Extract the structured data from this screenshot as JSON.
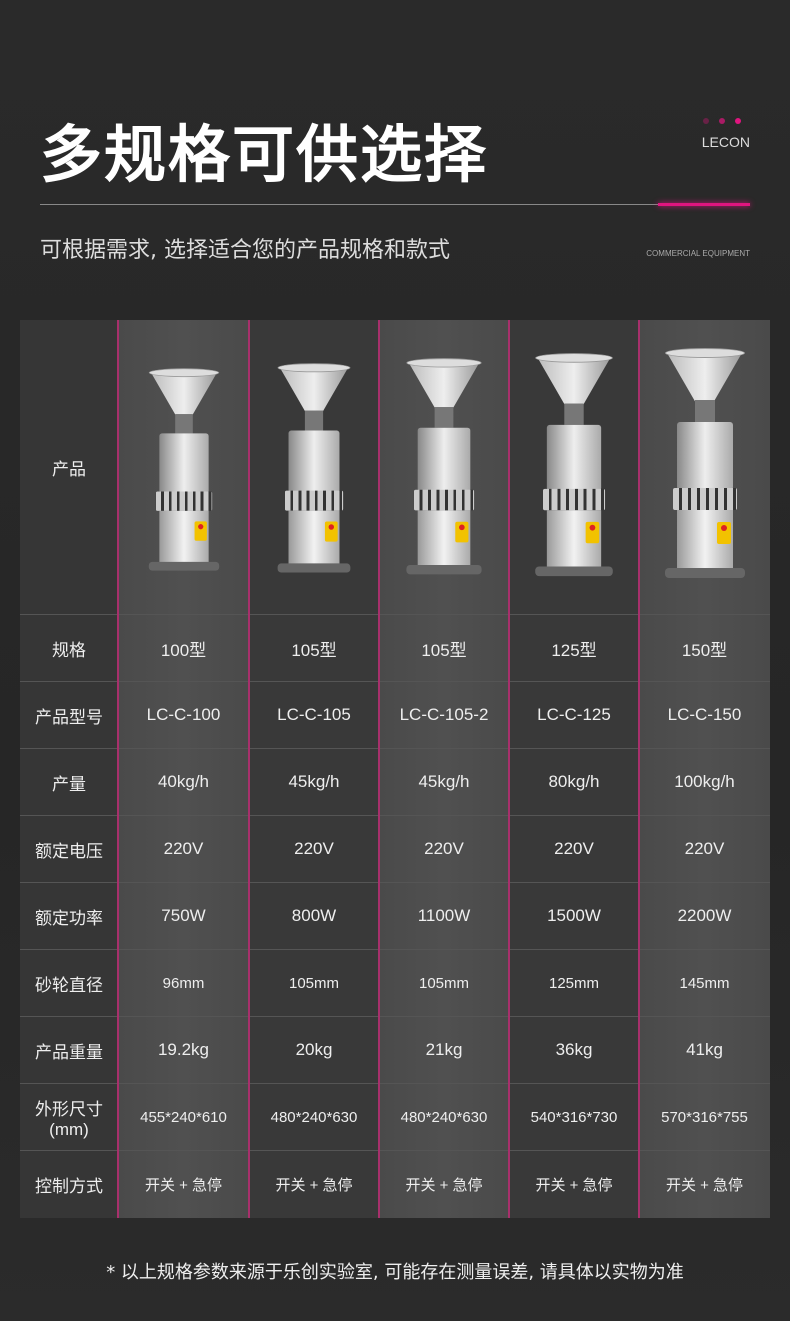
{
  "header": {
    "title": "多规格可供选择",
    "brand": "LECON",
    "subtitle": "可根据需求, 选择适合您的产品规格和款式",
    "tagline": "COMMERCIAL EQUIPMENT",
    "accent_color": "#e0157f"
  },
  "table": {
    "rows": [
      {
        "label": "产品",
        "values": []
      },
      {
        "label": "规格",
        "values": [
          "100型",
          "105型",
          "105型",
          "125型",
          "150型"
        ]
      },
      {
        "label": "产品型号",
        "values": [
          "LC-C-100",
          "LC-C-105",
          "LC-C-105-2",
          "LC-C-125",
          "LC-C-150"
        ]
      },
      {
        "label": "产量",
        "values": [
          "40kg/h",
          "45kg/h",
          "45kg/h",
          "80kg/h",
          "100kg/h"
        ]
      },
      {
        "label": "额定电压",
        "values": [
          "220V",
          "220V",
          "220V",
          "220V",
          "220V"
        ]
      },
      {
        "label": "额定功率",
        "values": [
          "750W",
          "800W",
          "1100W",
          "1500W",
          "2200W"
        ]
      },
      {
        "label": "砂轮直径",
        "values": [
          "96mm",
          "105mm",
          "105mm",
          "125mm",
          "145mm"
        ]
      },
      {
        "label": "产品重量",
        "values": [
          "19.2kg",
          "20kg",
          "21kg",
          "36kg",
          "41kg"
        ]
      },
      {
        "label": "外形尺寸\n(mm)",
        "values": [
          "455*240*610",
          "480*240*630",
          "480*240*630",
          "540*316*730",
          "570*316*755"
        ]
      },
      {
        "label": "控制方式",
        "values": [
          "开关 + 急停",
          "开关 + 急停",
          "开关 + 急停",
          "开关 + 急停",
          "开关 + 急停"
        ]
      }
    ]
  },
  "footnote": "* 以上规格参数来源于乐创实验室, 可能存在测量误差, 请具体以实物为准"
}
